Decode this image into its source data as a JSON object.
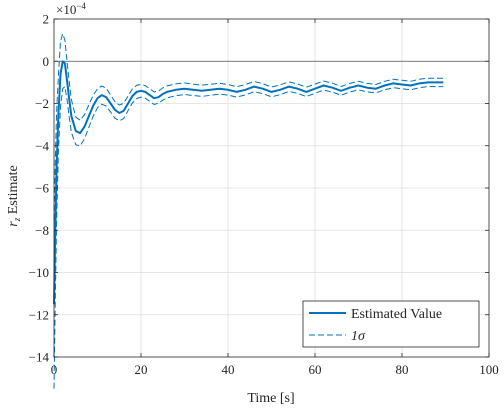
{
  "chart_data": {
    "type": "line",
    "title": "",
    "xlabel": "Time [s]",
    "ylabel": "r_z Estimate",
    "ylabel_base": "r",
    "ylabel_sub": "z",
    "ylabel_rest": " Estimate",
    "y_exponent_base": "×10",
    "y_exponent_power": "−4",
    "xlim": [
      0,
      100
    ],
    "ylim": [
      -14,
      2
    ],
    "x_ticks": [
      0,
      20,
      40,
      60,
      80,
      100
    ],
    "y_ticks": [
      -14,
      -12,
      -10,
      -8,
      -6,
      -4,
      -2,
      0,
      2
    ],
    "x_tick_labels": [
      "0",
      "20",
      "40",
      "60",
      "80",
      "100"
    ],
    "y_tick_labels": [
      "−14",
      "−12",
      "−10",
      "−8",
      "−6",
      "−4",
      "−2",
      "0",
      "2"
    ],
    "grid": true,
    "reference_line_y": 0,
    "legend_position": "bottom-right",
    "legend": [
      "Estimated Value",
      "1σ"
    ],
    "legend_label_estimated": "Estimated Value",
    "legend_label_sigma": "1σ",
    "colors": {
      "series": "#0072BD",
      "axis": "#262626",
      "grid": "#dfdfdf",
      "reference": "#555555"
    },
    "series": [
      {
        "name": "Estimated Value",
        "style": "solid",
        "x": [
          0,
          0.3,
          0.6,
          1.0,
          1.5,
          2.0,
          2.5,
          3.0,
          3.5,
          4.0,
          5.0,
          6.0,
          7.0,
          8.0,
          9.0,
          10.0,
          11.0,
          12.0,
          13.0,
          14.0,
          15.0,
          16.0,
          17.0,
          18.0,
          19.0,
          20.0,
          21.0,
          22.0,
          23.0,
          24.0,
          25.0,
          26.0,
          28.0,
          30.0,
          32.0,
          34.0,
          36.0,
          38.0,
          40.0,
          42.0,
          44.0,
          46.0,
          48.0,
          50.0,
          52.0,
          54.0,
          56.0,
          58.0,
          60.0,
          62.0,
          64.0,
          66.0,
          68.0,
          70.0,
          72.0,
          74.0,
          76.0,
          78.0,
          80.0,
          82.0,
          84.0,
          86.0,
          88.0,
          89.5
        ],
        "y": [
          -11.5,
          -8.0,
          -5.0,
          -2.5,
          -0.6,
          0.0,
          -0.1,
          -0.9,
          -1.8,
          -2.6,
          -3.3,
          -3.4,
          -3.1,
          -2.6,
          -2.1,
          -1.75,
          -1.6,
          -1.7,
          -2.0,
          -2.3,
          -2.45,
          -2.35,
          -2.0,
          -1.65,
          -1.45,
          -1.4,
          -1.45,
          -1.6,
          -1.75,
          -1.7,
          -1.55,
          -1.45,
          -1.35,
          -1.3,
          -1.35,
          -1.4,
          -1.35,
          -1.3,
          -1.35,
          -1.45,
          -1.35,
          -1.2,
          -1.3,
          -1.45,
          -1.35,
          -1.2,
          -1.3,
          -1.45,
          -1.3,
          -1.15,
          -1.25,
          -1.4,
          -1.25,
          -1.15,
          -1.25,
          -1.3,
          -1.15,
          -1.05,
          -1.1,
          -1.15,
          -1.05,
          -1.0,
          -1.0,
          -1.0
        ]
      },
      {
        "name": "1σ",
        "style": "dashed",
        "bands": [
          {
            "offset_x": [
              0,
              0.5,
              1.0,
              2.0,
              3.0,
              5.0,
              10.0,
              20.0,
              40.0,
              70.0,
              89.5
            ],
            "offset_y": [
              4.0,
              2.8,
              1.8,
              1.3,
              0.9,
              0.65,
              0.45,
              0.3,
              0.25,
              0.2,
              0.2
            ]
          }
        ]
      }
    ]
  }
}
